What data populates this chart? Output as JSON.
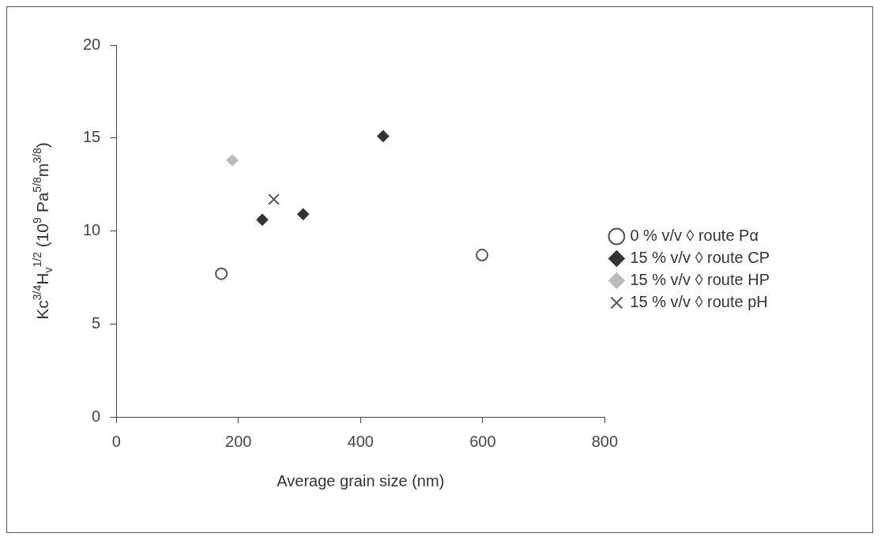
{
  "chart_data": {
    "type": "scatter",
    "xlabel": "Average grain size (nm)",
    "ylabel": "Kc$^{3/4}$H$_{v}$$^{1/2}$ (10$^{9}$ Pa$^{5/8}$m$^{3/8}$)",
    "xlim": [
      0,
      800
    ],
    "xticks": [
      0,
      200,
      400,
      600,
      800
    ],
    "ylim": [
      0,
      20
    ],
    "yticks": [
      0,
      5,
      10,
      15,
      20
    ],
    "grid": false,
    "legend": "right",
    "series": [
      {
        "name": "0 % v/v ◊ route Pα",
        "color": "#555555",
        "marker": "circle",
        "x": [
          172,
          599
        ],
        "values": [
          7.7,
          8.7
        ]
      },
      {
        "name": "15 % v/v ◊ route CP",
        "color": "#333333",
        "marker": "diamond",
        "x": [
          239,
          306,
          437
        ],
        "values": [
          10.6,
          10.9,
          15.1
        ]
      },
      {
        "name": "15 % v/v ◊ route HP",
        "color": "#bbbbbb",
        "marker": "diamond",
        "x": [
          190
        ],
        "values": [
          13.8
        ]
      },
      {
        "name": "15 % v/v ◊ route pH",
        "color": "#555555",
        "marker": "cross",
        "x": [
          258
        ],
        "values": [
          11.7
        ]
      }
    ]
  }
}
